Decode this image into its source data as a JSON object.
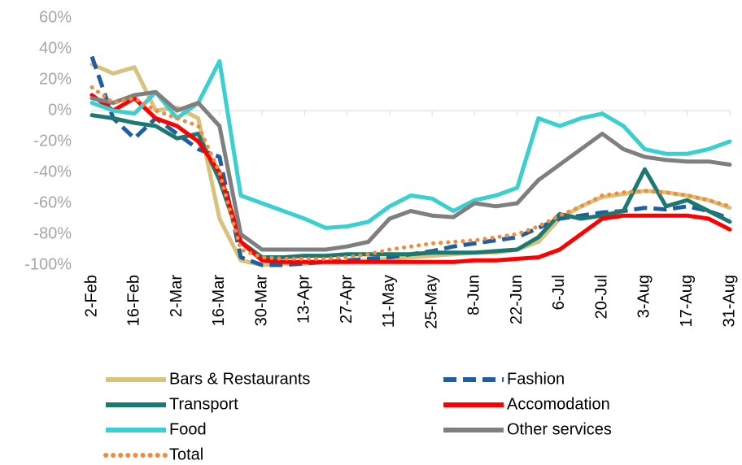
{
  "chart_data": {
    "type": "line",
    "categories": [
      "2-Feb",
      null,
      "16-Feb",
      null,
      "2-Mar",
      null,
      "16-Mar",
      null,
      "30-Mar",
      null,
      "13-Apr",
      null,
      "27-Apr",
      null,
      "11-May",
      null,
      "25-May",
      null,
      "8-Jun",
      null,
      "22-Jun",
      null,
      "6-Jul",
      null,
      "20-Jul",
      null,
      "3-Aug",
      null,
      "17-Aug",
      null,
      "31-Aug"
    ],
    "series": [
      {
        "name": "Bars & Restaurants",
        "color": "#d9c17e",
        "style": "solid",
        "values": [
          30,
          24,
          28,
          0,
          2,
          -5,
          -70,
          -97,
          -100,
          -99,
          -99,
          -98,
          -98,
          -97,
          -96,
          -95,
          -94,
          -93,
          -92,
          -92,
          -90,
          -85,
          -70,
          -62,
          -56,
          -54,
          -52,
          -53,
          -55,
          -58,
          -63
        ]
      },
      {
        "name": "Fashion",
        "color": "#1f5fa0",
        "style": "dashed",
        "values": [
          35,
          -5,
          -18,
          -5,
          -15,
          -25,
          -30,
          -95,
          -100,
          -100,
          -99,
          -98,
          -97,
          -96,
          -95,
          -93,
          -91,
          -88,
          -86,
          -84,
          -82,
          -76,
          -70,
          -68,
          -66,
          -65,
          -63,
          -64,
          -62,
          -65,
          -70
        ]
      },
      {
        "name": "Transport",
        "color": "#1e7872",
        "style": "solid",
        "values": [
          -3,
          -5,
          -8,
          -10,
          -18,
          -15,
          -45,
          -85,
          -95,
          -95,
          -94,
          -94,
          -93,
          -93,
          -93,
          -93,
          -92,
          -92,
          -92,
          -91,
          -90,
          -82,
          -67,
          -70,
          -68,
          -65,
          -38,
          -62,
          -58,
          -65,
          -72
        ]
      },
      {
        "name": "Accomodation",
        "color": "#ff0000",
        "style": "solid",
        "values": [
          10,
          0,
          8,
          -5,
          -10,
          -20,
          -40,
          -85,
          -97,
          -98,
          -98,
          -98,
          -98,
          -98,
          -98,
          -98,
          -98,
          -98,
          -97,
          -97,
          -96,
          -95,
          -90,
          -80,
          -70,
          -68,
          -68,
          -68,
          -68,
          -70,
          -77
        ]
      },
      {
        "name": "Food",
        "color": "#3ccfcf",
        "style": "solid",
        "values": [
          5,
          0,
          -2,
          12,
          -5,
          5,
          32,
          -55,
          -60,
          -65,
          -70,
          -76,
          -75,
          -72,
          -62,
          -55,
          -57,
          -65,
          -58,
          -55,
          -50,
          -5,
          -10,
          -5,
          -2,
          -10,
          -25,
          -28,
          -28,
          -25,
          -20
        ]
      },
      {
        "name": "Other services",
        "color": "#7f7f7f",
        "style": "solid",
        "values": [
          8,
          5,
          10,
          12,
          0,
          5,
          -10,
          -80,
          -90,
          -90,
          -90,
          -90,
          -88,
          -85,
          -70,
          -65,
          -68,
          -69,
          -60,
          -62,
          -60,
          -45,
          -35,
          -25,
          -15,
          -25,
          -30,
          -32,
          -33,
          -33,
          -35
        ]
      },
      {
        "name": "Total",
        "color": "#f08c3c",
        "style": "dotted",
        "values": [
          15,
          5,
          8,
          0,
          -5,
          -10,
          -40,
          -90,
          -95,
          -96,
          -96,
          -96,
          -95,
          -93,
          -90,
          -88,
          -86,
          -85,
          -84,
          -82,
          -80,
          -75,
          -68,
          -62,
          -55,
          -53,
          -52,
          -53,
          -55,
          -58,
          -62
        ]
      }
    ],
    "ylim": [
      -100,
      60
    ],
    "yticks": [
      {
        "value": -100,
        "label": "-100%"
      },
      {
        "value": -80,
        "label": "-80%"
      },
      {
        "value": -60,
        "label": "-60%"
      },
      {
        "value": -40,
        "label": "-40%"
      },
      {
        "value": -20,
        "label": "-20%"
      },
      {
        "value": 0,
        "label": "0%"
      },
      {
        "value": 20,
        "label": "20%"
      },
      {
        "value": 40,
        "label": "40%"
      },
      {
        "value": 60,
        "label": "60%"
      }
    ],
    "grid": false,
    "legend": "bottom"
  }
}
